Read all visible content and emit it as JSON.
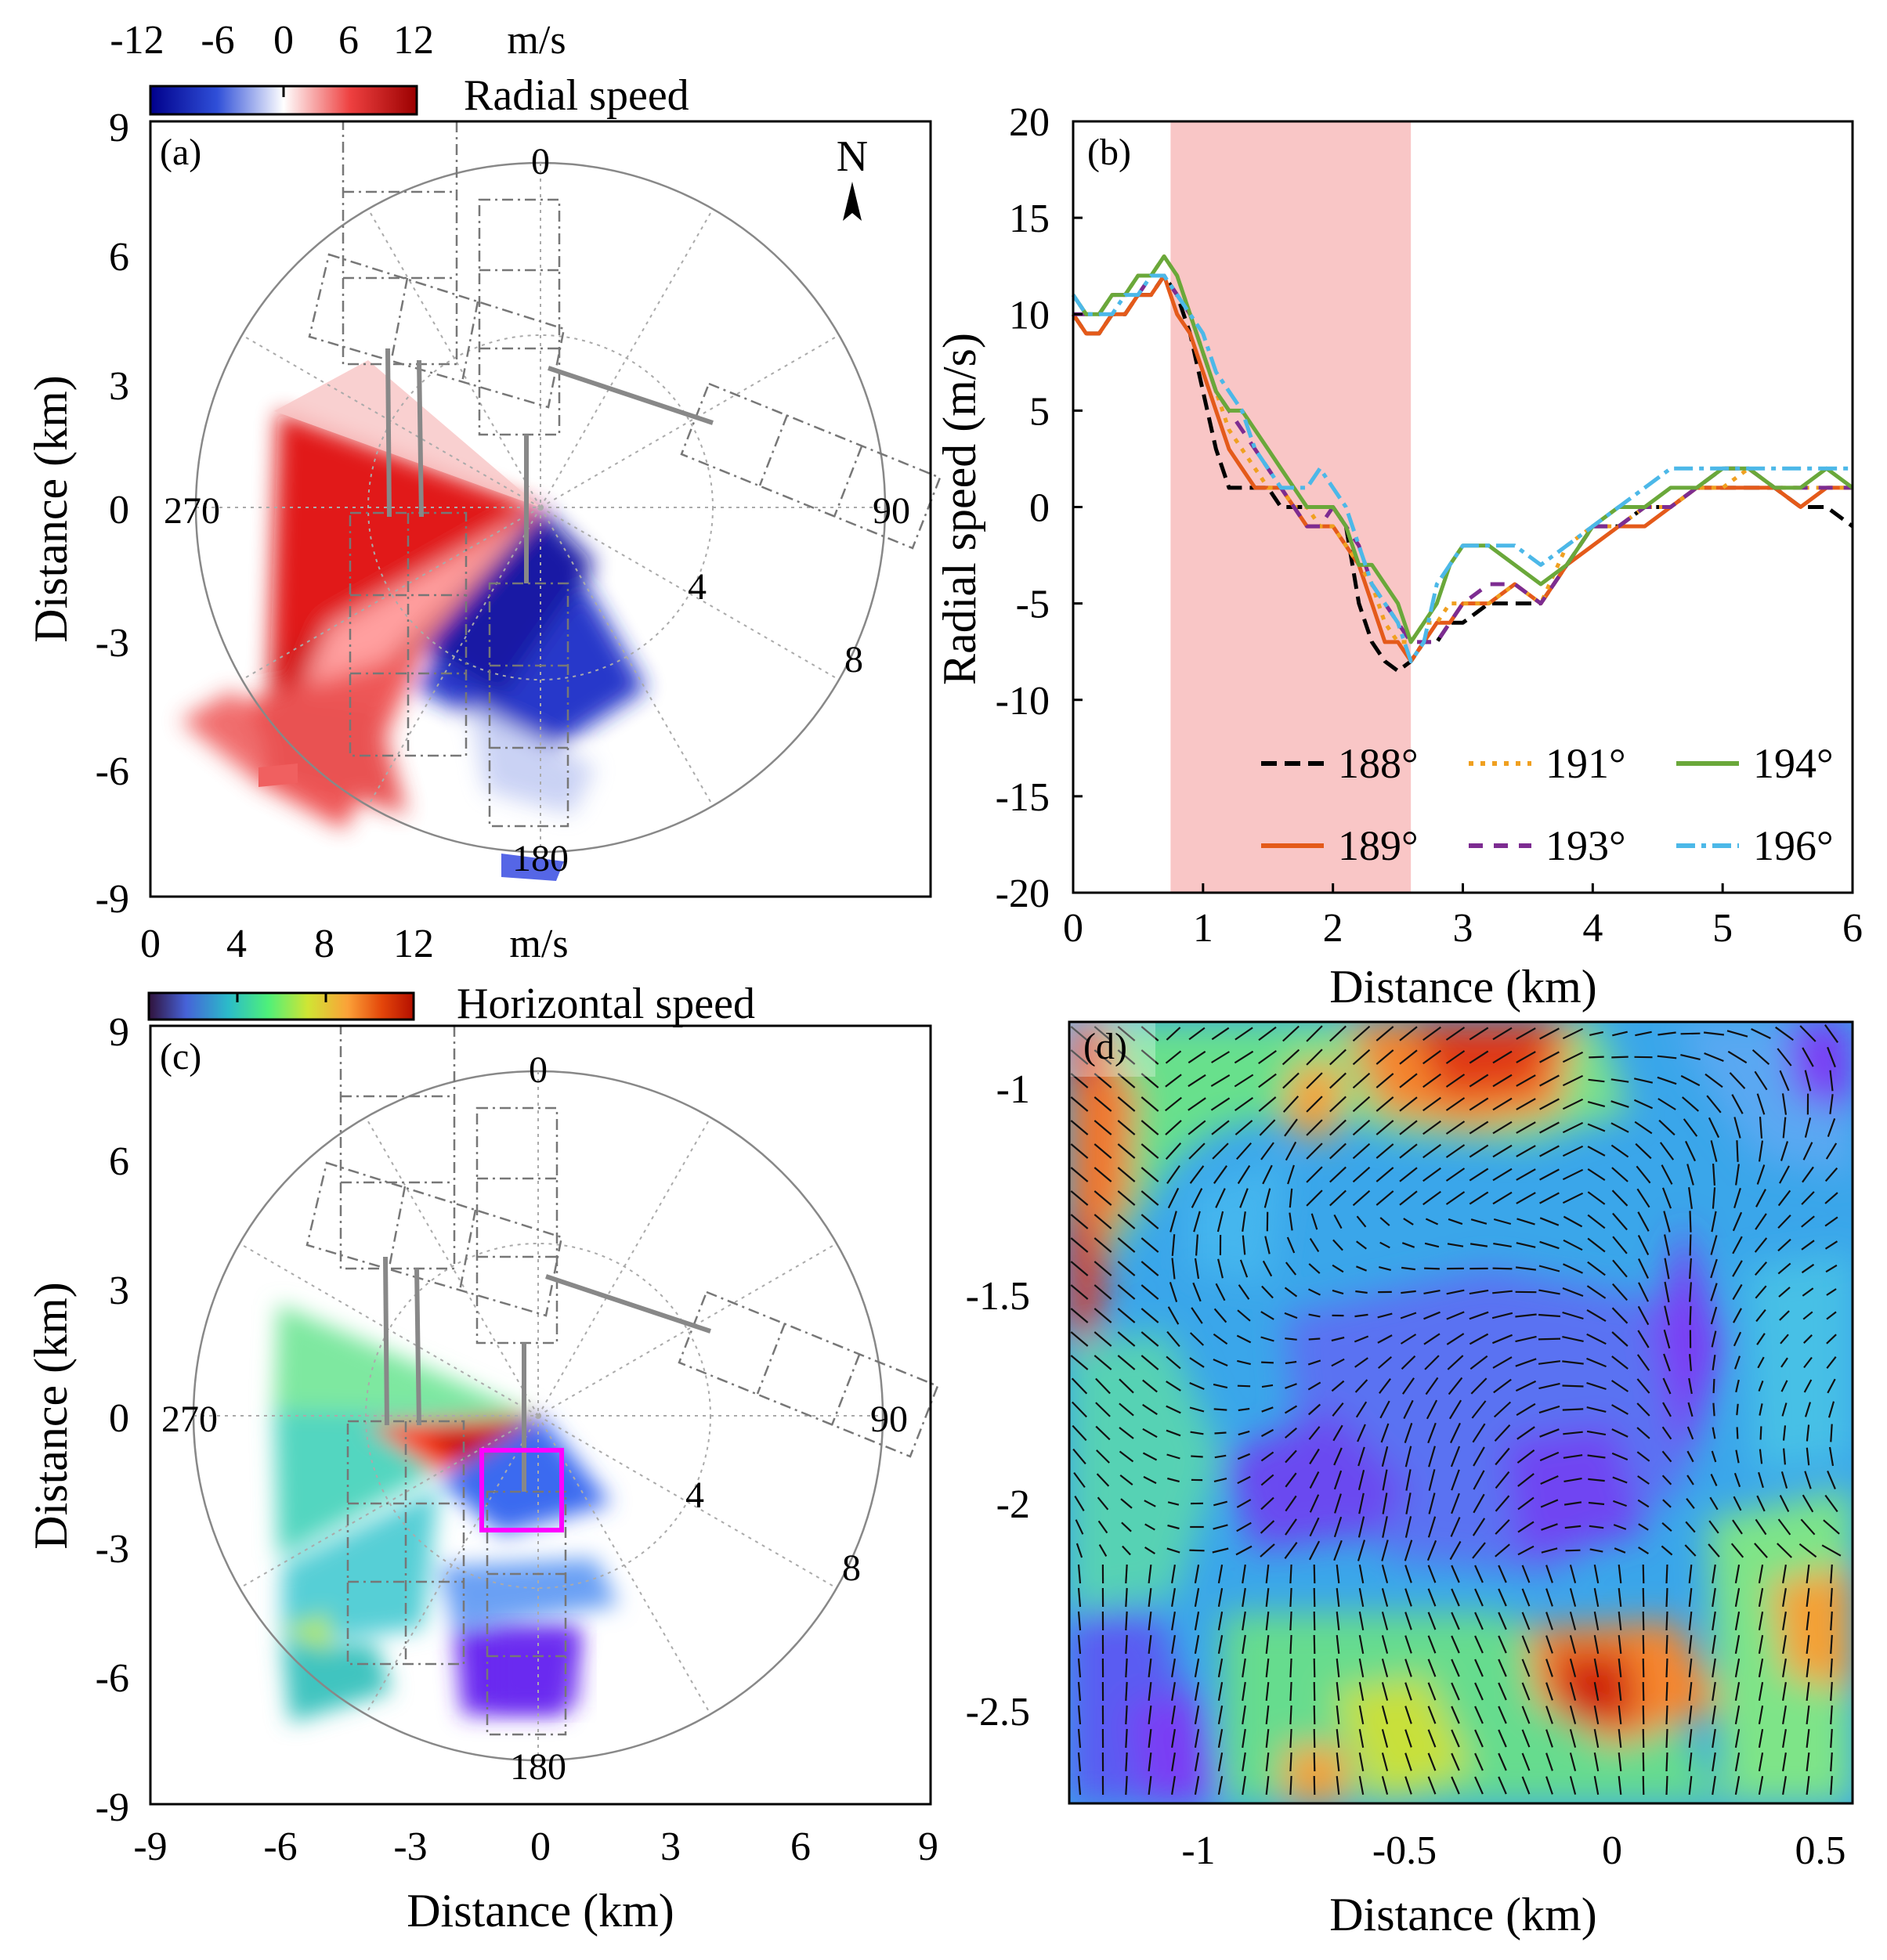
{
  "chart_data": [
    {
      "panel": "(a)",
      "type": "heatmap",
      "xlabel": "",
      "ylabel": "Distance (km)",
      "xlim": [
        -9,
        9
      ],
      "ylim": [
        -9,
        9
      ],
      "yticks": [
        "9",
        "6",
        "3",
        "0",
        "-3",
        "-6",
        "-9"
      ],
      "colorbar": {
        "ticks": [
          "-12",
          "-6",
          "0",
          "6",
          "12"
        ],
        "unit": "m/s",
        "title": "Radial speed",
        "range": [
          -12,
          12
        ],
        "colors": [
          "#00008b",
          "#2f4fd8",
          "#ffffff",
          "#ee4040",
          "#9b0000"
        ]
      },
      "polar": {
        "azimuth_labels": [
          "0",
          "90",
          "180",
          "270"
        ],
        "range_labels": [
          "4",
          "8"
        ],
        "north_label": "N"
      },
      "field": {
        "sector_deg": [
          145,
          300
        ],
        "range_km": [
          0,
          8.5
        ],
        "note_regions": [
          {
            "az_from": 270,
            "az_to": 310,
            "value": 10
          },
          {
            "az_from": 240,
            "az_to": 270,
            "value": 11
          },
          {
            "az_from": 200,
            "az_to": 240,
            "value": 7
          },
          {
            "az_from": 180,
            "az_to": 200,
            "value": -3
          },
          {
            "az_from": 145,
            "az_to": 180,
            "value": -9
          }
        ]
      }
    },
    {
      "panel": "(b)",
      "type": "line",
      "xlabel": "Distance (km)",
      "ylabel": "Radial speed (m/s)",
      "xlim": [
        0,
        6
      ],
      "ylim": [
        -20,
        20
      ],
      "xticks": [
        "0",
        "1",
        "2",
        "3",
        "4",
        "5",
        "6"
      ],
      "yticks": [
        "20",
        "15",
        "10",
        "5",
        "0",
        "-5",
        "-10",
        "-15",
        "-20"
      ],
      "shaded_region": {
        "x": [
          0.75,
          2.6
        ],
        "color": "#f9c6c6"
      },
      "legend_position": "bottom-right",
      "series": [
        {
          "name": "188°",
          "color": "#000000",
          "dash": "20,10",
          "x": [
            0,
            0.1,
            0.2,
            0.3,
            0.4,
            0.5,
            0.6,
            0.7,
            0.8,
            0.9,
            1.0,
            1.1,
            1.2,
            1.3,
            1.4,
            1.5,
            1.6,
            1.7,
            1.8,
            1.9,
            2.0,
            2.1,
            2.2,
            2.3,
            2.4,
            2.5,
            2.6,
            2.7,
            2.8,
            2.9,
            3.0,
            3.2,
            3.4,
            3.6,
            3.8,
            4.0,
            4.2,
            4.4,
            4.6,
            4.8,
            5.0,
            5.2,
            5.4,
            5.6,
            5.8,
            6.0
          ],
          "y": [
            10,
            9,
            9,
            10,
            10,
            11,
            11,
            12,
            11,
            9,
            6,
            3,
            1,
            1,
            1,
            1,
            0,
            0,
            0,
            0,
            0,
            -1,
            -5,
            -7,
            -8,
            -8.5,
            -8,
            -7,
            -7,
            -6,
            -6,
            -5,
            -5,
            -5,
            -3,
            -1,
            -1,
            0,
            0,
            1,
            1,
            1,
            1,
            0,
            0,
            -1
          ]
        },
        {
          "name": "189°",
          "color": "#e45a1a",
          "dash": "",
          "x": [
            0,
            0.1,
            0.2,
            0.3,
            0.4,
            0.5,
            0.6,
            0.7,
            0.8,
            0.9,
            1.0,
            1.1,
            1.2,
            1.3,
            1.4,
            1.5,
            1.6,
            1.7,
            1.8,
            1.9,
            2.0,
            2.1,
            2.2,
            2.3,
            2.4,
            2.5,
            2.6,
            2.7,
            2.8,
            2.9,
            3.0,
            3.2,
            3.4,
            3.6,
            3.8,
            4.0,
            4.2,
            4.4,
            4.6,
            4.8,
            5.0,
            5.2,
            5.4,
            5.6,
            5.8,
            6.0
          ],
          "y": [
            10,
            9,
            9,
            10,
            10,
            11,
            11,
            12,
            10,
            9,
            7,
            5,
            3,
            2,
            1,
            1,
            1,
            0,
            -1,
            -1,
            -1,
            -2,
            -3,
            -5,
            -7,
            -7,
            -8,
            -7,
            -6,
            -6,
            -5,
            -5,
            -4,
            -5,
            -3,
            -2,
            -1,
            -1,
            0,
            1,
            1,
            1,
            1,
            0,
            1,
            1
          ]
        },
        {
          "name": "191°",
          "color": "#f0a020",
          "dash": "6,9",
          "x": [
            0,
            0.1,
            0.2,
            0.3,
            0.4,
            0.5,
            0.6,
            0.7,
            0.8,
            0.9,
            1.0,
            1.1,
            1.2,
            1.3,
            1.4,
            1.5,
            1.6,
            1.7,
            1.8,
            1.9,
            2.0,
            2.1,
            2.2,
            2.3,
            2.4,
            2.5,
            2.6,
            2.7,
            2.8,
            2.9,
            3.0,
            3.2,
            3.4,
            3.6,
            3.8,
            4.0,
            4.2,
            4.4,
            4.6,
            4.8,
            5.0,
            5.2,
            5.4,
            5.6,
            5.8,
            6.0
          ],
          "y": [
            11,
            10,
            10,
            11,
            11,
            12,
            12,
            13,
            12,
            10,
            8,
            6,
            4,
            3,
            2,
            1,
            1,
            0,
            0,
            -1,
            -1,
            -2,
            -3,
            -4,
            -6,
            -7,
            -7,
            -6,
            -6,
            -5,
            -5,
            -5,
            -4,
            -5,
            -2,
            -1,
            -1,
            0,
            0,
            1,
            1,
            2,
            1,
            1,
            1,
            1
          ]
        },
        {
          "name": "193°",
          "color": "#7d2c91",
          "dash": "18,14",
          "x": [
            0,
            0.1,
            0.2,
            0.3,
            0.4,
            0.5,
            0.6,
            0.7,
            0.8,
            0.9,
            1.0,
            1.1,
            1.2,
            1.3,
            1.4,
            1.5,
            1.6,
            1.7,
            1.8,
            1.9,
            2.0,
            2.1,
            2.2,
            2.3,
            2.4,
            2.5,
            2.6,
            2.7,
            2.8,
            2.9,
            3.0,
            3.2,
            3.4,
            3.6,
            3.8,
            4.0,
            4.2,
            4.4,
            4.6,
            4.8,
            5.0,
            5.2,
            5.4,
            5.6,
            5.8,
            6.0
          ],
          "y": [
            10,
            10,
            10,
            11,
            11,
            11,
            12,
            12,
            11,
            10,
            8,
            6,
            5,
            4,
            3,
            2,
            1,
            0,
            -1,
            -1,
            0,
            -1,
            -2,
            -4,
            -5,
            -6,
            -7,
            -7,
            -7,
            -6,
            -5,
            -4,
            -4,
            -5,
            -3,
            -1,
            -1,
            0,
            0,
            1,
            2,
            2,
            1,
            1,
            1,
            1
          ]
        },
        {
          "name": "194°",
          "color": "#6aa83a",
          "dash": "",
          "x": [
            0,
            0.1,
            0.2,
            0.3,
            0.4,
            0.5,
            0.6,
            0.7,
            0.8,
            0.9,
            1.0,
            1.1,
            1.2,
            1.3,
            1.4,
            1.5,
            1.6,
            1.7,
            1.8,
            1.9,
            2.0,
            2.1,
            2.2,
            2.3,
            2.4,
            2.5,
            2.6,
            2.7,
            2.8,
            2.9,
            3.0,
            3.2,
            3.4,
            3.6,
            3.8,
            4.0,
            4.2,
            4.4,
            4.6,
            4.8,
            5.0,
            5.2,
            5.4,
            5.6,
            5.8,
            6.0
          ],
          "y": [
            11,
            10,
            10,
            11,
            11,
            12,
            12,
            13,
            12,
            10,
            8,
            6,
            5,
            5,
            4,
            3,
            2,
            1,
            0,
            0,
            0,
            -1,
            -3,
            -3,
            -4,
            -5,
            -7,
            -6,
            -5,
            -3,
            -2,
            -2,
            -3,
            -4,
            -3,
            -1,
            0,
            0,
            1,
            1,
            2,
            2,
            1,
            1,
            2,
            1
          ]
        },
        {
          "name": "196°",
          "color": "#4cb8e8",
          "dash": "24,8,6,8",
          "x": [
            0,
            0.1,
            0.2,
            0.3,
            0.4,
            0.5,
            0.6,
            0.7,
            0.8,
            0.9,
            1.0,
            1.1,
            1.2,
            1.3,
            1.4,
            1.5,
            1.6,
            1.7,
            1.8,
            1.9,
            2.0,
            2.1,
            2.2,
            2.3,
            2.4,
            2.5,
            2.6,
            2.7,
            2.8,
            2.9,
            3.0,
            3.2,
            3.4,
            3.6,
            3.8,
            4.0,
            4.2,
            4.4,
            4.6,
            4.8,
            5.0,
            5.2,
            5.4,
            5.6,
            5.8,
            6.0
          ],
          "y": [
            11,
            10,
            10,
            10,
            11,
            11,
            12,
            12,
            11,
            10,
            9,
            7,
            6,
            5,
            3,
            2,
            1,
            1,
            1,
            2,
            1,
            0,
            -2,
            -4,
            -5,
            -6,
            -8,
            -7,
            -4,
            -3,
            -2,
            -2,
            -2,
            -3,
            -2,
            -1,
            0,
            1,
            2,
            2,
            2,
            2,
            2,
            2,
            2,
            2
          ]
        }
      ]
    },
    {
      "panel": "(c)",
      "type": "heatmap",
      "xlabel": "Distance (km)",
      "ylabel": "Distance (km)",
      "xlim": [
        -9,
        9
      ],
      "ylim": [
        -9,
        9
      ],
      "xticks": [
        "-9",
        "-6",
        "-3",
        "0",
        "3",
        "6",
        "9"
      ],
      "yticks": [
        "9",
        "6",
        "3",
        "0",
        "-3",
        "-6",
        "-9"
      ],
      "colorbar": {
        "ticks": [
          "0",
          "4",
          "8",
          "12"
        ],
        "unit": "m/s",
        "title": "Horizontal speed",
        "range": [
          0,
          16
        ],
        "colors": [
          "#30123b",
          "#4662d8",
          "#2bbbc9",
          "#4ef07a",
          "#d0e534",
          "#fba238",
          "#e4460a",
          "#b40f00"
        ]
      },
      "polar": {
        "azimuth_labels": [
          "0",
          "90",
          "180",
          "270"
        ],
        "range_labels": [
          "4",
          "8"
        ]
      },
      "highlight_box": {
        "x": [
          -1.2,
          0.6
        ],
        "y": [
          -2.6,
          -0.8
        ],
        "color": "#ff00ff"
      }
    },
    {
      "panel": "(d)",
      "type": "heatmap",
      "xlabel": "Distance (km)",
      "ylabel": "",
      "xlim": [
        -1.3,
        0.5
      ],
      "ylim": [
        -2.75,
        -0.85
      ],
      "xticks": [
        "-1",
        "-0.5",
        "0",
        "0.5"
      ],
      "yticks": [
        "-1",
        "-1.5",
        "-2",
        "-2.5"
      ],
      "note": "horizontal wind speed field with wind vectors (quiver)"
    }
  ],
  "labels": {
    "a": "(a)",
    "b": "(b)",
    "c": "(c)",
    "d": "(d)",
    "north": "N",
    "az0": "0",
    "az90": "90",
    "az180": "180",
    "az270": "270",
    "r4": "4",
    "r8": "8",
    "unit": "m/s",
    "radial_title": "Radial speed",
    "horizontal_title": "Horizontal speed",
    "ylabel_dist": "Distance (km)",
    "xlabel_dist": "Distance (km)",
    "ylabel_b": "Radial speed (m/s)"
  }
}
